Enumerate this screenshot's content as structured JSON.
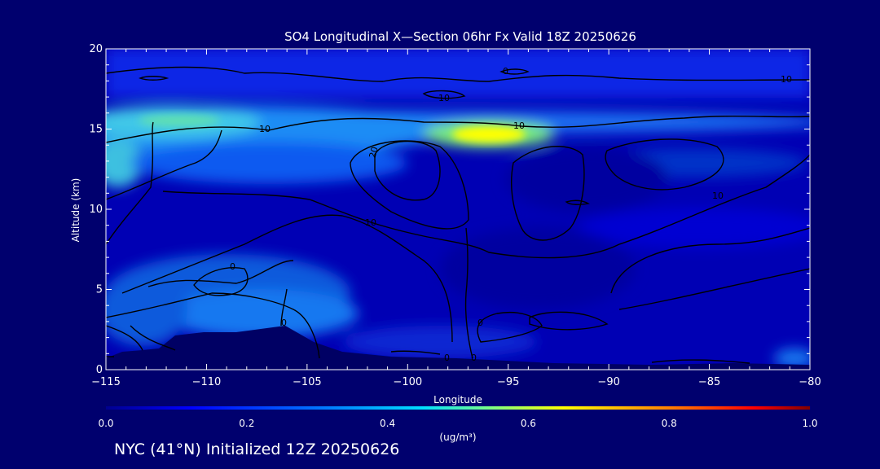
{
  "chart_data": {
    "type": "heatmap",
    "title": "SO4 Longitudinal X—Section 06hr  Fx Valid 18Z 20250626",
    "xlabel": "Longitude",
    "ylabel": "Altitude (km)",
    "xlim": [
      -115,
      -80
    ],
    "ylim": [
      0,
      20
    ],
    "x_ticks": [
      "−115",
      "−110",
      "−105",
      "−100",
      "−95",
      "−90",
      "−85",
      "−80"
    ],
    "y_ticks": [
      "0",
      "5",
      "10",
      "15",
      "20"
    ],
    "colorbar": {
      "ticks": [
        "0.0",
        "0.2",
        "0.4",
        "0.6",
        "0.8",
        "1.0"
      ],
      "label": "(ug/m³)",
      "range": [
        0.0,
        1.0
      ]
    },
    "contour_labels": [
      "10",
      "10",
      "10",
      "20",
      "10",
      "10",
      "10",
      "0",
      "0",
      "0",
      "0",
      "0",
      "0"
    ],
    "colors": {
      "background": "#00006e",
      "low": "#0000c8",
      "high": "#ffff00"
    }
  },
  "footer": "NYC (41°N) Initialized 12Z 20250626"
}
